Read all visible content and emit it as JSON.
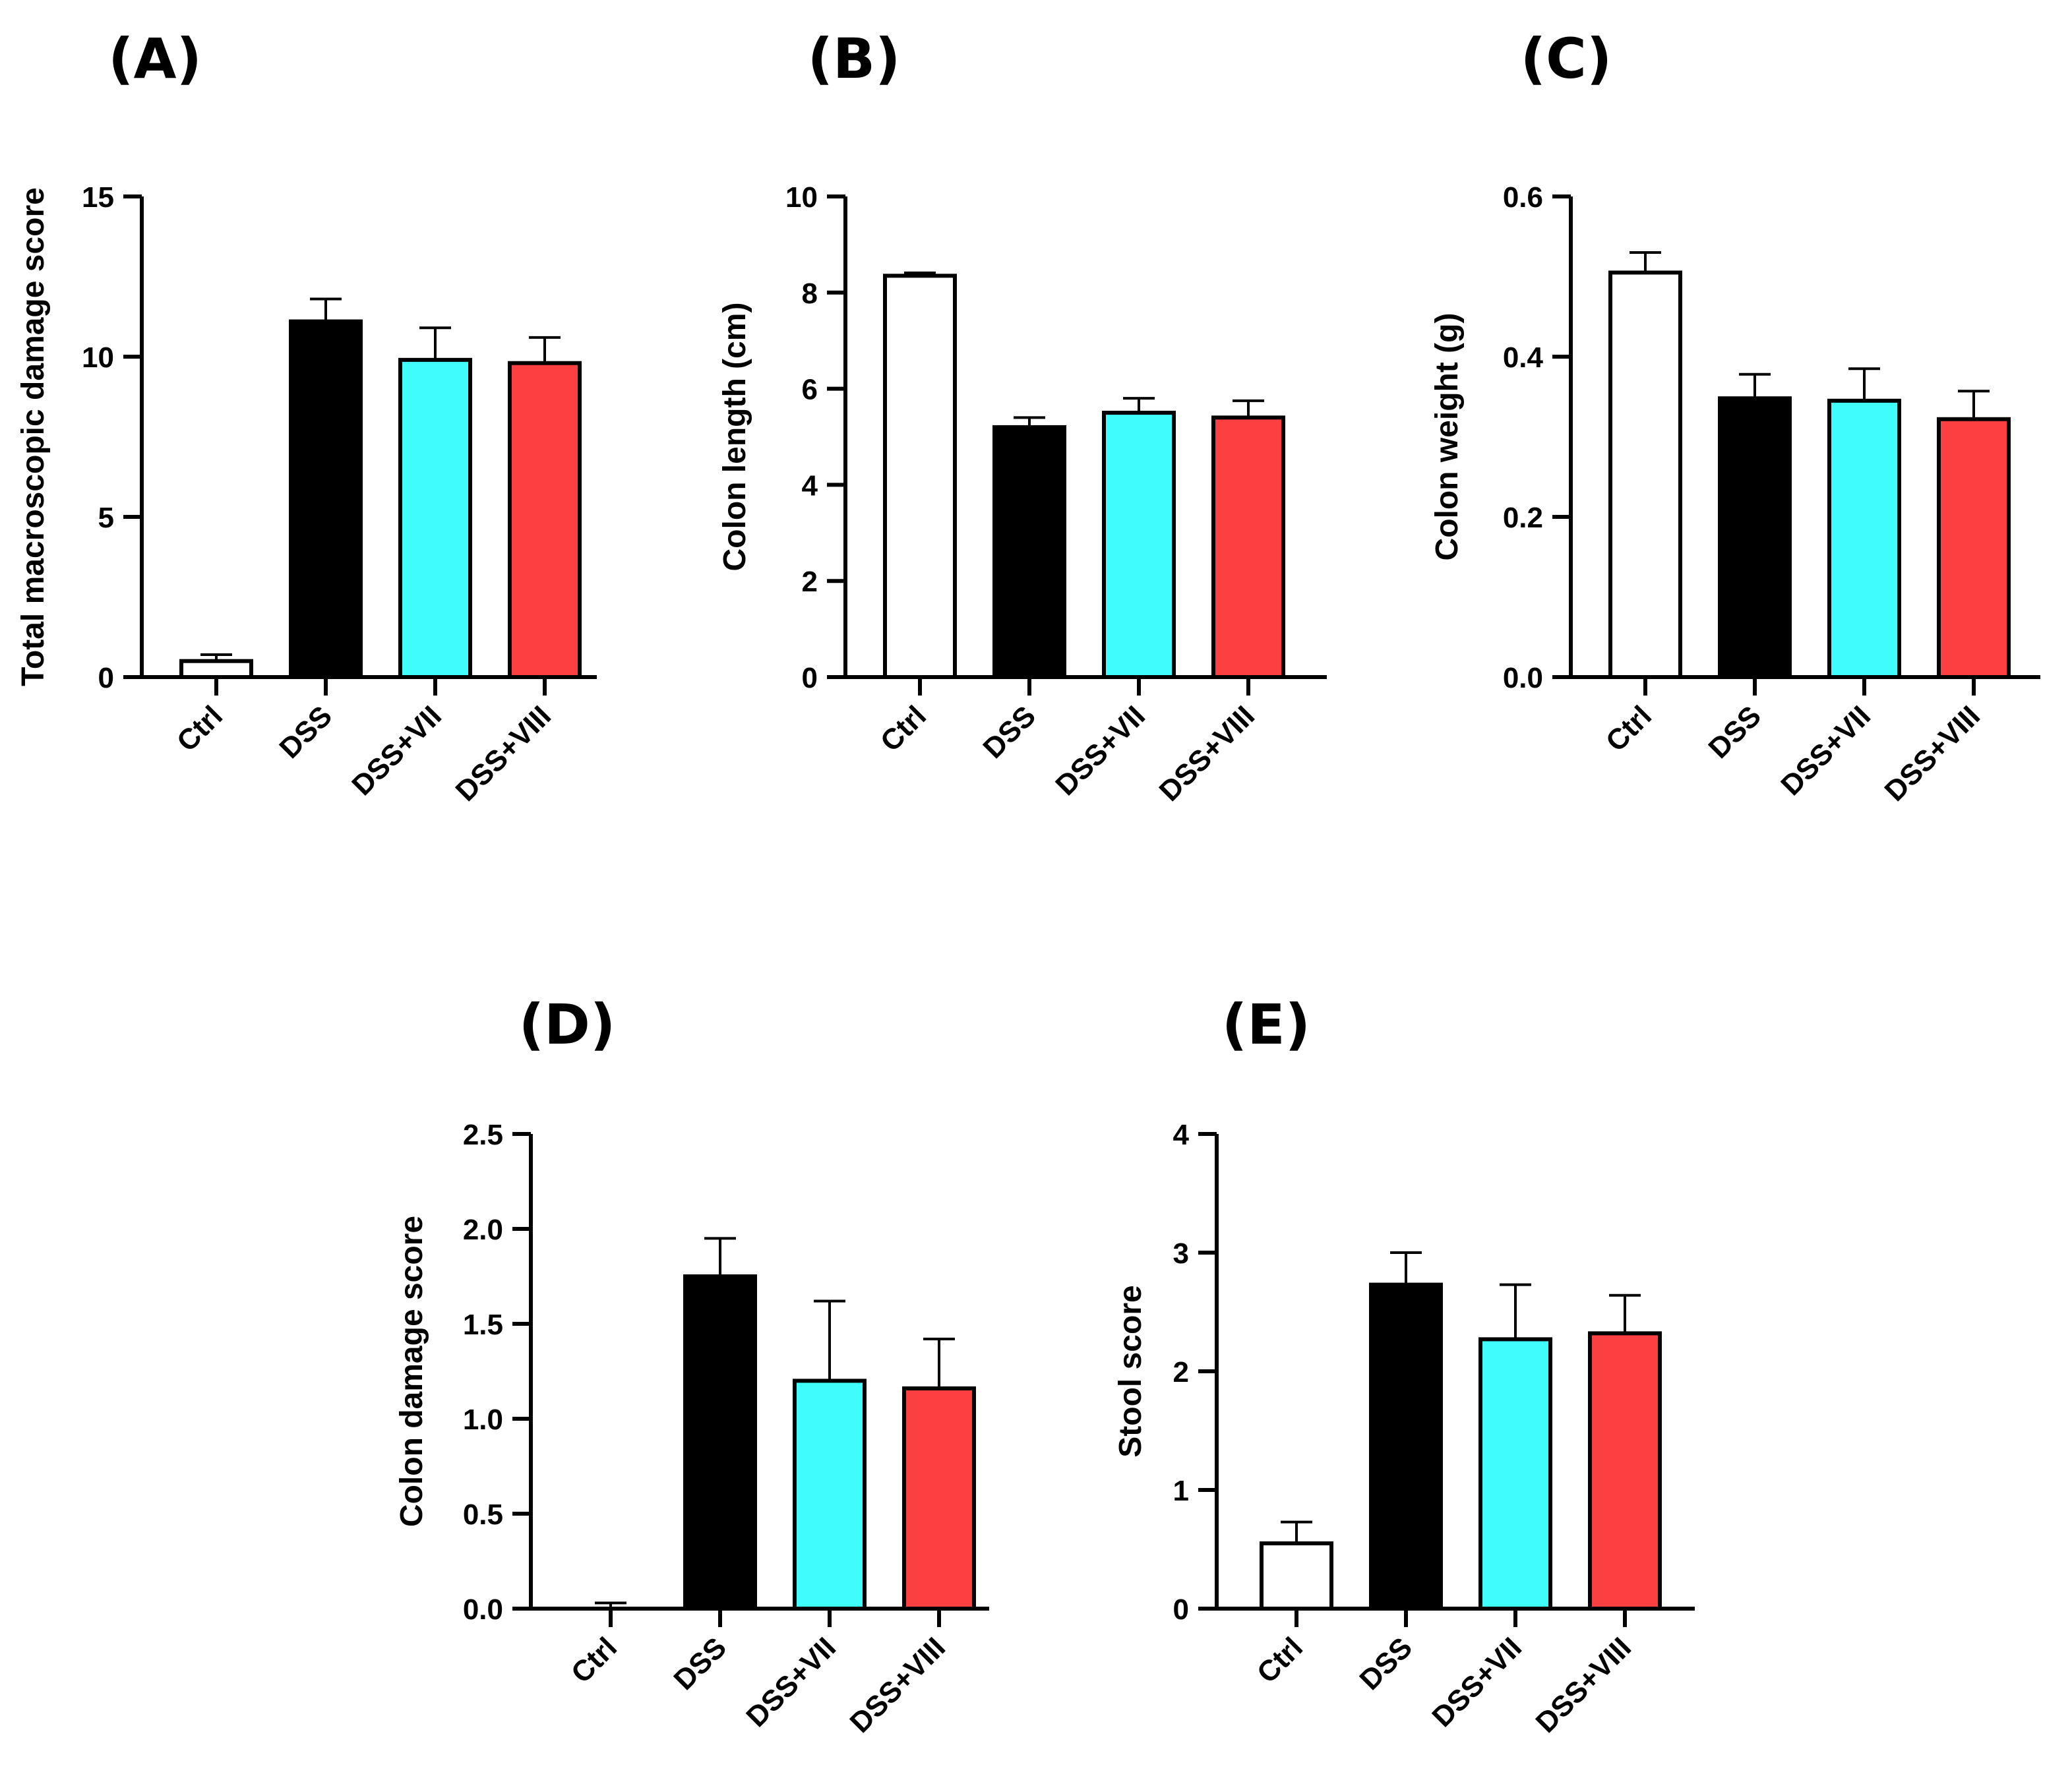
{
  "colors": {
    "Ctrl": "#ffffff",
    "DSS": "#000000",
    "DSS+VII": "#3ffdfd",
    "DSS+VIII": "#fc4042",
    "outline": "#000000"
  },
  "chart_data": [
    {
      "panel": "(A)",
      "type": "bar",
      "categories": [
        "Ctrl",
        "DSS",
        "DSS+VII",
        "DSS+VIII"
      ],
      "values": [
        0.5,
        11.1,
        9.9,
        9.8
      ],
      "errors": [
        0.2,
        0.7,
        1.0,
        0.8
      ],
      "ylabel": "Total macroscopic damage score",
      "ylim": [
        0,
        15
      ],
      "yticks": [
        0,
        5,
        10,
        15
      ],
      "ytick_labels": [
        "0",
        "5",
        "10",
        "15"
      ]
    },
    {
      "panel": "(B)",
      "type": "bar",
      "categories": [
        "Ctrl",
        "DSS",
        "DSS+VII",
        "DSS+VIII"
      ],
      "values": [
        8.35,
        5.2,
        5.5,
        5.4
      ],
      "errors": [
        0.06,
        0.2,
        0.3,
        0.35
      ],
      "ylabel": "Colon length (cm)",
      "ylim": [
        0,
        10
      ],
      "yticks": [
        0,
        2,
        4,
        6,
        8,
        10
      ],
      "ytick_labels": [
        "0",
        "2",
        "4",
        "6",
        "8",
        "10"
      ]
    },
    {
      "panel": "(C)",
      "type": "bar",
      "categories": [
        "Ctrl",
        "DSS",
        "DSS+VII",
        "DSS+VIII"
      ],
      "values": [
        0.505,
        0.348,
        0.345,
        0.322
      ],
      "errors": [
        0.025,
        0.03,
        0.04,
        0.035
      ],
      "ylabel": "Colon weight (g)",
      "ylim": [
        0,
        0.6
      ],
      "yticks": [
        0,
        0.2,
        0.4,
        0.6
      ],
      "ytick_labels": [
        "0.0",
        "0.2",
        "0.4",
        "0.6"
      ]
    },
    {
      "panel": "(D)",
      "type": "bar",
      "categories": [
        "Ctrl",
        "DSS",
        "DSS+VII",
        "DSS+VIII"
      ],
      "values": [
        0.0,
        1.75,
        1.2,
        1.16
      ],
      "errors": [
        0.03,
        0.2,
        0.42,
        0.26
      ],
      "ylabel": "Colon damage score",
      "ylim": [
        0,
        2.5
      ],
      "yticks": [
        0,
        0.5,
        1.0,
        1.5,
        2.0,
        2.5
      ],
      "ytick_labels": [
        "0.0",
        "0.5",
        "1.0",
        "1.5",
        "2.0",
        "2.5"
      ]
    },
    {
      "panel": "(E)",
      "type": "bar",
      "categories": [
        "Ctrl",
        "DSS",
        "DSS+VII",
        "DSS+VIII"
      ],
      "values": [
        0.55,
        2.73,
        2.27,
        2.32
      ],
      "errors": [
        0.18,
        0.27,
        0.46,
        0.32
      ],
      "ylabel": "Stool score",
      "ylim": [
        0,
        4
      ],
      "yticks": [
        0,
        1,
        2,
        3,
        4
      ],
      "ytick_labels": [
        "0",
        "1",
        "2",
        "3",
        "4"
      ]
    }
  ]
}
